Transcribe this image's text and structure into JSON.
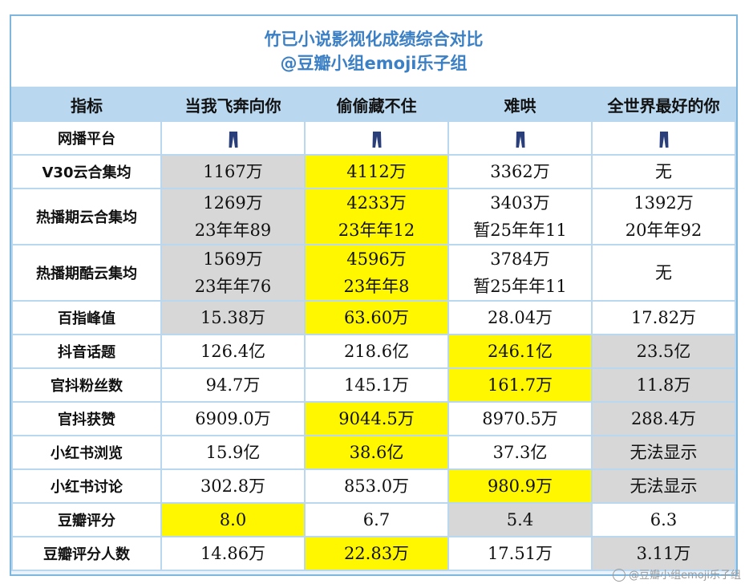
{
  "chart_data": {
    "type": "table",
    "title": "竹已小说影视化成绩综合对比",
    "subtitle": "@豆瓣小组emoji乐子组",
    "headers": [
      "指标",
      "当我飞奔向你",
      "偷偷藏不住",
      "难哄",
      "全世界最好的你"
    ],
    "rows": [
      {
        "label": "网播平台",
        "cells": [
          [
            "jeans-icon"
          ],
          [
            "jeans-icon"
          ],
          [
            "jeans-icon"
          ],
          [
            "jeans-icon"
          ]
        ],
        "hl": [
          "",
          "",
          "",
          ""
        ],
        "tall": false
      },
      {
        "label": "V30云合集均",
        "cells": [
          [
            "1167万"
          ],
          [
            "4112万"
          ],
          [
            "3362万"
          ],
          [
            "无"
          ]
        ],
        "hl": [
          "gray",
          "yellow",
          "",
          ""
        ],
        "tall": false
      },
      {
        "label": "热播期云合集均",
        "cells": [
          [
            "1269万",
            "23年年89"
          ],
          [
            "4233万",
            "23年年12"
          ],
          [
            "3403万",
            "暂25年年11"
          ],
          [
            "1392万",
            "20年年92"
          ]
        ],
        "hl": [
          "gray",
          "yellow",
          "",
          ""
        ],
        "tall": true
      },
      {
        "label": "热播期酷云集均",
        "cells": [
          [
            "1569万",
            "23年年76"
          ],
          [
            "4596万",
            "23年年8"
          ],
          [
            "3784万",
            "暂25年年11"
          ],
          [
            "无"
          ]
        ],
        "hl": [
          "gray",
          "yellow",
          "",
          ""
        ],
        "tall": true
      },
      {
        "label": "百指峰值",
        "cells": [
          [
            "15.38万"
          ],
          [
            "63.60万"
          ],
          [
            "28.04万"
          ],
          [
            "17.82万"
          ]
        ],
        "hl": [
          "gray",
          "yellow",
          "",
          ""
        ],
        "tall": false
      },
      {
        "label": "抖音话题",
        "cells": [
          [
            "126.4亿"
          ],
          [
            "218.6亿"
          ],
          [
            "246.1亿"
          ],
          [
            "23.5亿"
          ]
        ],
        "hl": [
          "",
          "",
          "yellow",
          "gray"
        ],
        "tall": false
      },
      {
        "label": "官抖粉丝数",
        "cells": [
          [
            "94.7万"
          ],
          [
            "145.1万"
          ],
          [
            "161.7万"
          ],
          [
            "11.8万"
          ]
        ],
        "hl": [
          "",
          "",
          "yellow",
          "gray"
        ],
        "tall": false
      },
      {
        "label": "官抖获赞",
        "cells": [
          [
            "6909.0万"
          ],
          [
            "9044.5万"
          ],
          [
            "8970.5万"
          ],
          [
            "288.4万"
          ]
        ],
        "hl": [
          "",
          "yellow",
          "",
          "gray"
        ],
        "tall": false
      },
      {
        "label": "小红书浏览",
        "cells": [
          [
            "15.9亿"
          ],
          [
            "38.6亿"
          ],
          [
            "37.3亿"
          ],
          [
            "无法显示"
          ]
        ],
        "hl": [
          "",
          "yellow",
          "",
          "gray"
        ],
        "tall": false
      },
      {
        "label": "小红书讨论",
        "cells": [
          [
            "302.8万"
          ],
          [
            "853.0万"
          ],
          [
            "980.9万"
          ],
          [
            "无法显示"
          ]
        ],
        "hl": [
          "",
          "",
          "yellow",
          "gray"
        ],
        "tall": false
      },
      {
        "label": "豆瓣评分",
        "cells": [
          [
            "8.0"
          ],
          [
            "6.7"
          ],
          [
            "5.4"
          ],
          [
            "6.3"
          ]
        ],
        "hl": [
          "yellow",
          "",
          "gray",
          ""
        ],
        "tall": false
      },
      {
        "label": "豆瓣评分人数",
        "cells": [
          [
            "14.86万"
          ],
          [
            "22.83万"
          ],
          [
            "17.51万"
          ],
          [
            "3.11万"
          ]
        ],
        "hl": [
          "",
          "yellow",
          "",
          "gray"
        ],
        "tall": false
      }
    ]
  },
  "colors": {
    "highlight_yellow": "#fff700",
    "highlight_gray": "#d7d7d7",
    "header_blue": "#b9d7ef",
    "title_blue": "#3b7fc4",
    "jeans": "#2a3f7a"
  },
  "watermark": "@豆瓣小组emoji乐子组"
}
